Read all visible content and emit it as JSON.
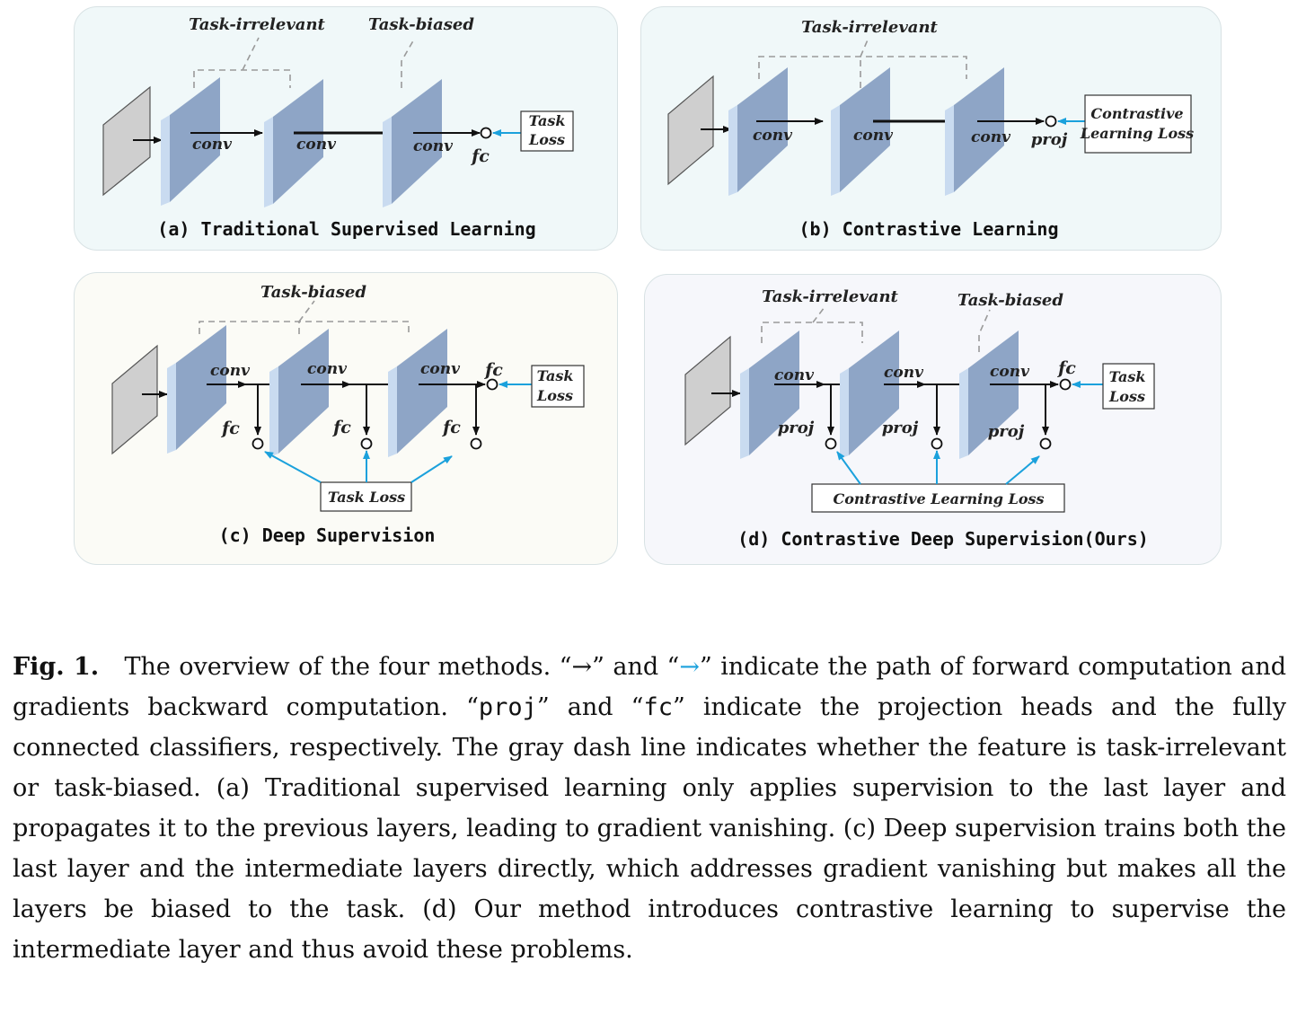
{
  "labels": {
    "task_irrelevant": "Task-irrelevant",
    "task_biased": "Task-biased",
    "conv": "conv",
    "fc": "fc",
    "proj": "proj",
    "task": "Task",
    "loss": "Loss",
    "task_loss": "Task Loss",
    "contrastive": "Contrastive",
    "learning_loss": "Learning Loss",
    "contrastive_learning_loss": "Contrastive Learning Loss"
  },
  "panels": {
    "a": "(a) Traditional Supervised Learning",
    "b": "(b) Contrastive  Learning",
    "c": "(c) Deep  Supervision",
    "d": "(d) Contrastive Deep Supervision(Ours)"
  },
  "colors": {
    "layer_face": "#8ea5c6",
    "layer_edge": "#c9dbf0",
    "gradient_arrow": "#1ba1dc",
    "dash_line": "#9a9a9a"
  },
  "caption": {
    "fig_label": "Fig. 1.",
    "t1": "The overview of the four methods. “→” and “",
    "arrow": "→",
    "t2": "” indicate the path of forward computation and gradients backward computation. “",
    "proj": "proj",
    "t3": "” and “",
    "fc": "fc",
    "t4": "” indicate the projection heads and the fully connected classifiers, respectively. The gray dash line indicates whether the feature is task-irrelevant or task-biased. (a) Traditional supervised learning only applies supervision to the last layer and propagates it to the previous layers, leading to gradient vanishing. (c) Deep supervision trains both the last layer and the intermediate layers directly, which addresses gradient vanishing but makes all the layers be biased to the task. (d) Our method introduces contrastive learning to supervise the intermediate layer and thus avoid these problems."
  }
}
